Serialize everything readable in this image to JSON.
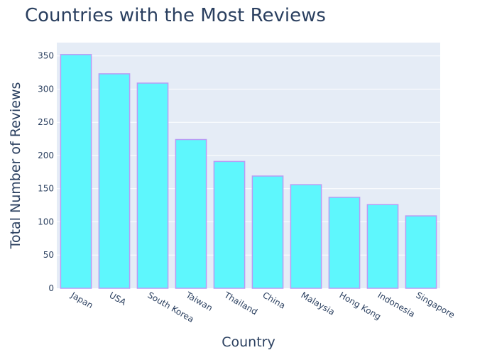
{
  "chart_data": {
    "type": "bar",
    "title": "Countries with the Most Reviews",
    "xlabel": "Country",
    "ylabel": "Total Number of Reviews",
    "categories": [
      "Japan",
      "USA",
      "South Korea",
      "Taiwan",
      "Thailand",
      "China",
      "Malaysia",
      "Hong Kong",
      "Indonesia",
      "Singapore"
    ],
    "values": [
      352,
      323,
      309,
      224,
      191,
      169,
      156,
      137,
      126,
      109
    ],
    "ylim": [
      0,
      370
    ],
    "yticks": [
      0,
      50,
      100,
      150,
      200,
      250,
      300,
      350
    ],
    "grid": true,
    "legend": "none",
    "colors": {
      "bar_fill": "#5ef7fd",
      "bar_stroke": "#b89cf5",
      "plot_bg": "#e5ecf6",
      "grid": "#ffffff",
      "text": "#2a3f5f"
    }
  }
}
